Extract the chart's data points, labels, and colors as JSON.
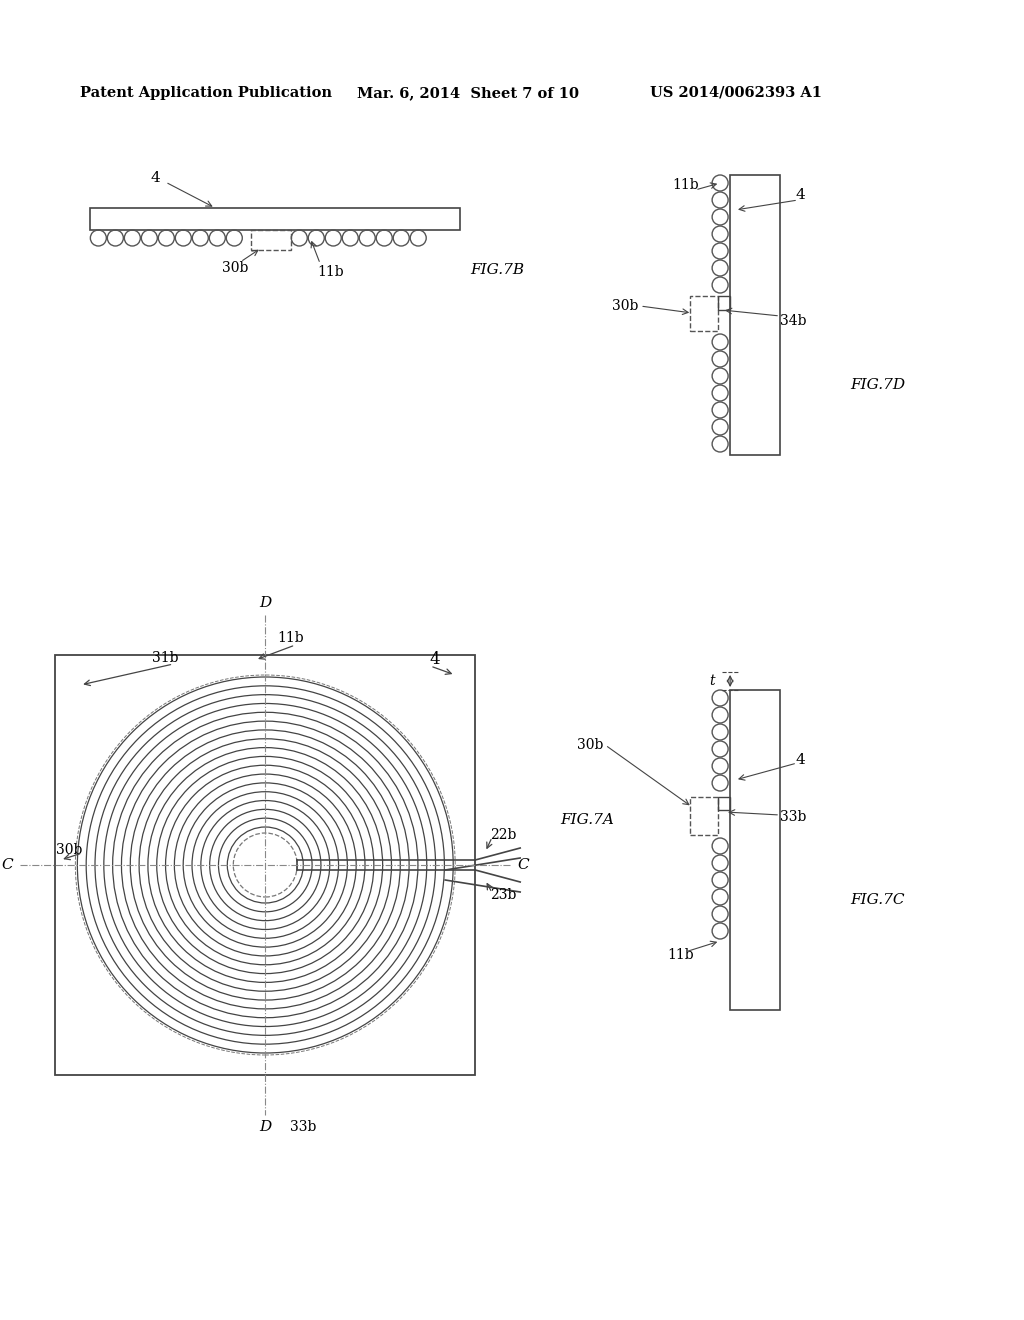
{
  "bg_color": "#ffffff",
  "header_text": "Patent Application Publication",
  "header_date": "Mar. 6, 2014  Sheet 7 of 10",
  "header_patent": "US 2014/0062393 A1",
  "line_color": "#444444",
  "circle_color": "#555555",
  "dash_color": "#777777"
}
